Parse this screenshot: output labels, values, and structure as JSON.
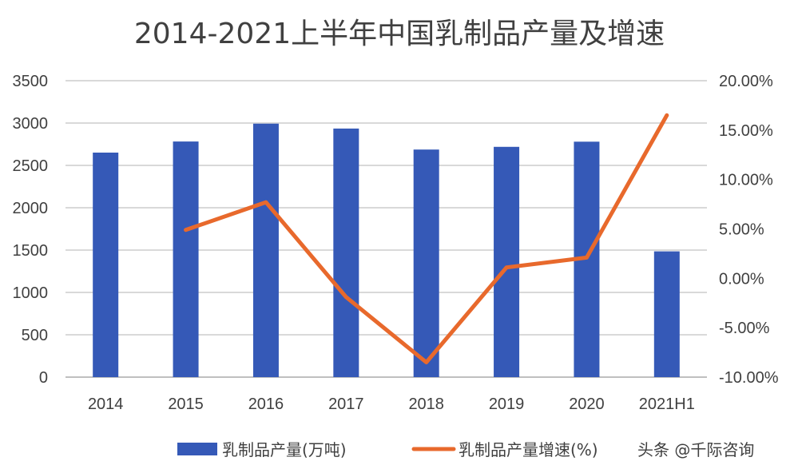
{
  "chart_data": {
    "type": "bar+line",
    "title": "2014-2021上半年中国乳制品产量及增速",
    "categories": [
      "2014",
      "2015",
      "2016",
      "2017",
      "2018",
      "2019",
      "2020",
      "2021H1"
    ],
    "series": [
      {
        "name": "乳制品产量(万吨)",
        "type": "bar",
        "axis": "left",
        "color": "#3559b7",
        "values": [
          2651,
          2782,
          2993,
          2935,
          2687,
          2719,
          2780,
          1485
        ]
      },
      {
        "name": "乳制品产量增速(%)",
        "type": "line",
        "axis": "right",
        "color": "#e8692c",
        "values": [
          null,
          4.9,
          7.7,
          -1.9,
          -8.5,
          1.1,
          2.1,
          16.5
        ]
      }
    ],
    "ylim_left": [
      0,
      3500
    ],
    "yticks_left": [
      "0",
      "500",
      "1000",
      "1500",
      "2000",
      "2500",
      "3000",
      "3500"
    ],
    "ylim_right": [
      -10,
      20
    ],
    "yticks_right": [
      "-10.00%",
      "-5.00%",
      "0.00%",
      "5.00%",
      "10.00%",
      "15.00%",
      "20.00%"
    ],
    "grid": true,
    "legend_position": "bottom"
  },
  "watermark": "头条 @千际咨询"
}
